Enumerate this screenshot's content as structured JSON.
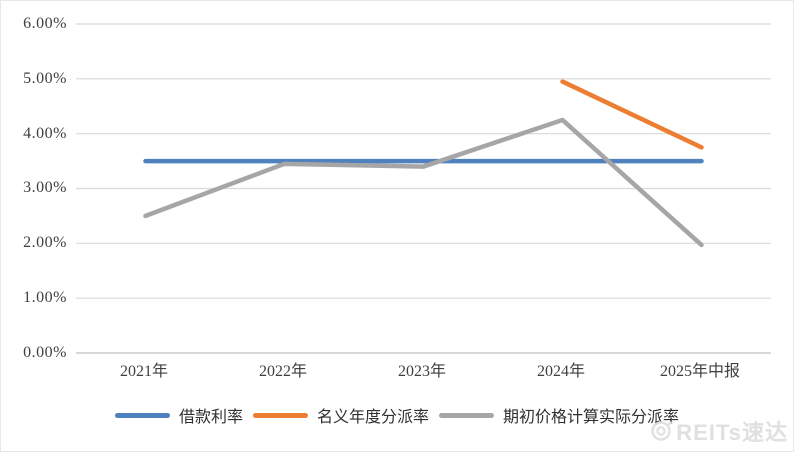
{
  "chart_data": {
    "type": "line",
    "title": "",
    "xlabel": "",
    "ylabel": "",
    "categories": [
      "2021年",
      "2022年",
      "2023年",
      "2024年",
      "2025年中报"
    ],
    "series": [
      {
        "name": "借款利率",
        "color": "#4E81BD",
        "values": [
          3.5,
          3.5,
          3.5,
          3.5,
          3.5
        ]
      },
      {
        "name": "名义年度分派率",
        "color": "#ED7D31",
        "values": [
          null,
          null,
          null,
          4.95,
          3.75
        ]
      },
      {
        "name": "期初价格计算实际分派率",
        "color": "#A6A6A6",
        "values": [
          2.5,
          3.45,
          3.4,
          4.25,
          1.97
        ]
      }
    ],
    "ylim": [
      0,
      6
    ],
    "ytick_labels": [
      "6.00%",
      "5.00%",
      "4.00%",
      "3.00%",
      "2.00%",
      "1.00%",
      "0.00%"
    ],
    "grid": true,
    "legend_position": "bottom",
    "unit": "percent"
  },
  "watermark": {
    "text": "REITs速达"
  }
}
